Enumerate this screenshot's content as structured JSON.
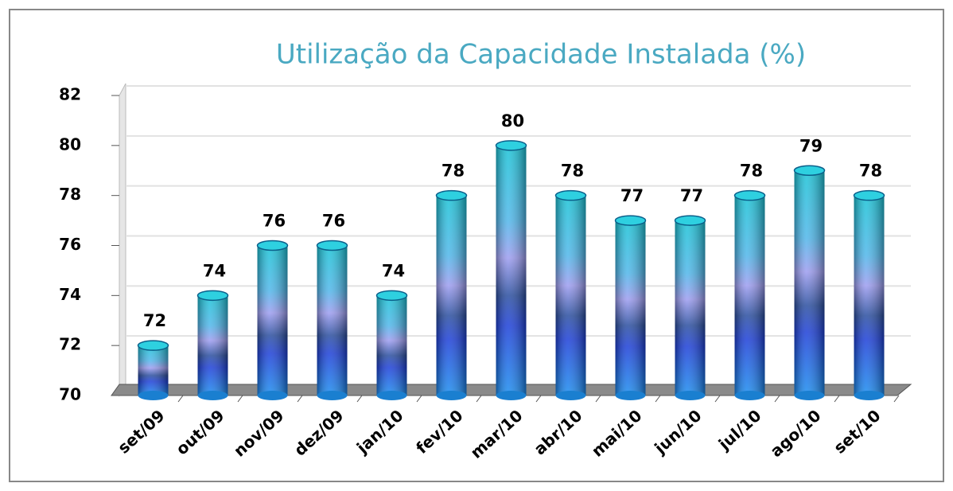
{
  "chart_data": {
    "type": "bar",
    "title": "Utilização da Capacidade Instalada (%)",
    "categories": [
      "set/09",
      "out/09",
      "nov/09",
      "dez/09",
      "jan/10",
      "fev/10",
      "mar/10",
      "abr/10",
      "mai/10",
      "jun/10",
      "jul/10",
      "ago/10",
      "set/10"
    ],
    "values": [
      72,
      74,
      76,
      76,
      74,
      78,
      80,
      78,
      77,
      77,
      78,
      79,
      78
    ],
    "color": "#1e8fe0",
    "ylim": [
      70,
      82
    ],
    "yticks": [
      70,
      72,
      74,
      76,
      78,
      80,
      82
    ],
    "grid": true
  }
}
